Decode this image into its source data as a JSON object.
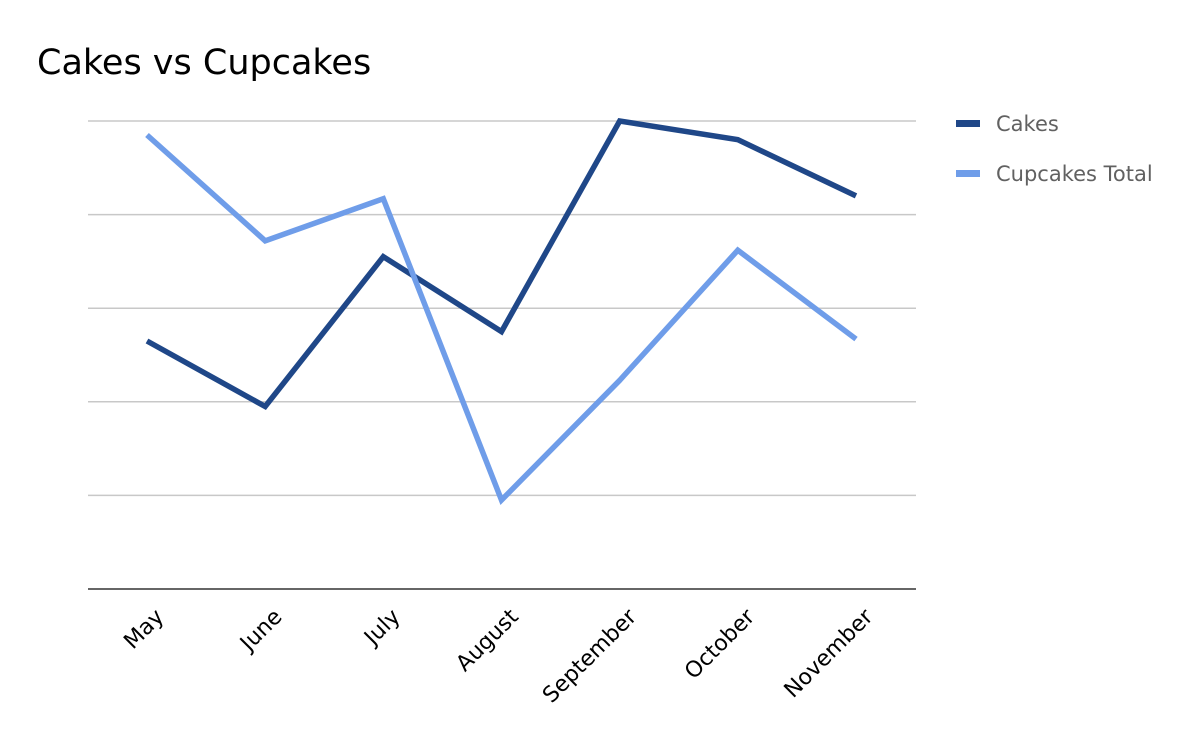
{
  "chart_data": {
    "type": "line",
    "title": "Cakes vs Cupcakes",
    "xlabel": "",
    "ylabel": "",
    "categories": [
      "May",
      "June",
      "July",
      "August",
      "September",
      "October",
      "November"
    ],
    "series": [
      {
        "name": "Cakes",
        "color": "#1f4788",
        "values": [
          2.65,
          1.95,
          3.55,
          2.75,
          5.0,
          4.8,
          4.2
        ]
      },
      {
        "name": "Cupcakes Total",
        "color": "#6f9de9",
        "values": [
          4.85,
          3.72,
          4.17,
          0.95,
          2.23,
          3.62,
          2.67
        ]
      }
    ],
    "ylim": [
      0,
      5
    ],
    "grid": true,
    "y_tick_labels_visible": false,
    "legend_position": "right"
  }
}
